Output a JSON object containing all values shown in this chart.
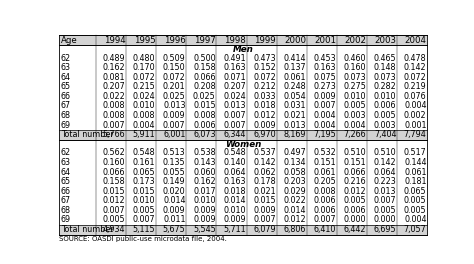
{
  "columns": [
    "Age",
    "1994",
    "1995",
    "1996",
    "1997",
    "1998",
    "1999",
    "2000",
    "2001",
    "2002",
    "2003",
    "2004"
  ],
  "men_section_label": "Men",
  "women_section_label": "Women",
  "men_rows": [
    [
      "62",
      "0.489",
      "0.480",
      "0.509",
      "0.500",
      "0.491",
      "0.473",
      "0.414",
      "0.453",
      "0.460",
      "0.465",
      "0.478"
    ],
    [
      "63",
      "0.162",
      "0.170",
      "0.150",
      "0.158",
      "0.163",
      "0.152",
      "0.137",
      "0.163",
      "0.160",
      "0.148",
      "0.142"
    ],
    [
      "64",
      "0.081",
      "0.072",
      "0.072",
      "0.066",
      "0.071",
      "0.072",
      "0.061",
      "0.075",
      "0.073",
      "0.073",
      "0.072"
    ],
    [
      "65",
      "0.207",
      "0.215",
      "0.201",
      "0.208",
      "0.207",
      "0.212",
      "0.248",
      "0.273",
      "0.275",
      "0.282",
      "0.219"
    ],
    [
      "66",
      "0.022",
      "0.024",
      "0.025",
      "0.025",
      "0.024",
      "0.033",
      "0.054",
      "0.009",
      "0.010",
      "0.010",
      "0.076"
    ],
    [
      "67",
      "0.008",
      "0.010",
      "0.013",
      "0.015",
      "0.013",
      "0.018",
      "0.031",
      "0.007",
      "0.005",
      "0.006",
      "0.004"
    ],
    [
      "68",
      "0.008",
      "0.008",
      "0.009",
      "0.008",
      "0.007",
      "0.012",
      "0.021",
      "0.004",
      "0.003",
      "0.005",
      "0.002"
    ],
    [
      "69",
      "0.007",
      "0.004",
      "0.007",
      "0.006",
      "0.007",
      "0.009",
      "0.013",
      "0.004",
      "0.004",
      "0.003",
      "0.001"
    ]
  ],
  "men_total": [
    "Total number",
    "5,766",
    "5,911",
    "6,001",
    "6,073",
    "6,344",
    "6,970",
    "8,169",
    "7,195",
    "7,266",
    "7,404",
    "7,794"
  ],
  "women_rows": [
    [
      "62",
      "0.562",
      "0.548",
      "0.513",
      "0.538",
      "0.548",
      "0.537",
      "0.497",
      "0.532",
      "0.510",
      "0.510",
      "0.517"
    ],
    [
      "63",
      "0.160",
      "0.161",
      "0.135",
      "0.143",
      "0.140",
      "0.142",
      "0.134",
      "0.151",
      "0.151",
      "0.142",
      "0.144"
    ],
    [
      "64",
      "0.066",
      "0.065",
      "0.055",
      "0.060",
      "0.064",
      "0.062",
      "0.058",
      "0.061",
      "0.066",
      "0.064",
      "0.061"
    ],
    [
      "65",
      "0.158",
      "0.173",
      "0.149",
      "0.162",
      "0.163",
      "0.178",
      "0.203",
      "0.205",
      "0.216",
      "0.223",
      "0.181"
    ],
    [
      "66",
      "0.015",
      "0.015",
      "0.020",
      "0.017",
      "0.018",
      "0.021",
      "0.029",
      "0.008",
      "0.012",
      "0.013",
      "0.065"
    ],
    [
      "67",
      "0.012",
      "0.010",
      "0.014",
      "0.010",
      "0.014",
      "0.015",
      "0.022",
      "0.006",
      "0.005",
      "0.007",
      "0.005"
    ],
    [
      "68",
      "0.007",
      "0.005",
      "0.009",
      "0.009",
      "0.010",
      "0.009",
      "0.014",
      "0.006",
      "0.006",
      "0.005",
      "0.005"
    ],
    [
      "69",
      "0.005",
      "0.007",
      "0.011",
      "0.009",
      "0.009",
      "0.007",
      "0.012",
      "0.007",
      "0.000",
      "0.000",
      "0.004"
    ]
  ],
  "women_total": [
    "Total number",
    "4,934",
    "5,115",
    "5,675",
    "5,545",
    "5,711",
    "6,079",
    "6,806",
    "6,410",
    "6,442",
    "6,695",
    "7,057"
  ],
  "source_text": "SOURCE: OASDI public-use microdata file, 2004.",
  "header_bg": "#d3d3d3",
  "total_bg": "#d3d3d3",
  "font_size": 5.8,
  "header_font_size": 6.2
}
